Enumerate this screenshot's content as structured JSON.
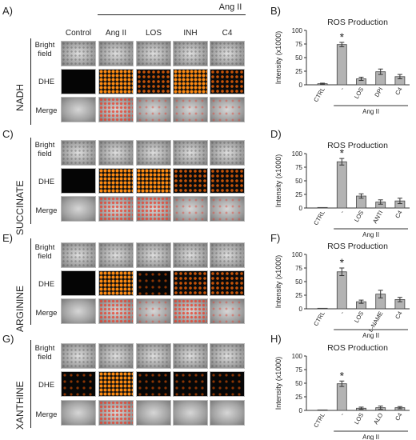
{
  "ang_ii_header": "Ang II",
  "col_headers": [
    "Control",
    "Ang II",
    "LOS",
    "INH",
    "C4"
  ],
  "row_labels": [
    "Bright field",
    "DHE",
    "Merge"
  ],
  "panels": [
    {
      "letter": "A)",
      "substrate": "NADH"
    },
    {
      "letter": "C)",
      "substrate": "SUCCINATE"
    },
    {
      "letter": "E)",
      "substrate": "ARGININE"
    },
    {
      "letter": "G)",
      "substrate": "XANTHINE"
    }
  ],
  "chart_letters": [
    "B)",
    "D)",
    "F)",
    "H)"
  ],
  "chart_data": [
    {
      "type": "bar",
      "title": "ROS Production",
      "ylabel": "Intensity (x1000)",
      "categories": [
        "CTRL",
        "-",
        "LOS",
        "DPI",
        "C4"
      ],
      "values": [
        2,
        74,
        11,
        24,
        15
      ],
      "errors": [
        1,
        4,
        3,
        5,
        4
      ],
      "ylim": [
        0,
        100
      ],
      "yticks": [
        0,
        25,
        50,
        75,
        100
      ],
      "group_label": "Ang II",
      "significance_index": 1,
      "significance_mark": "*"
    },
    {
      "type": "bar",
      "title": "ROS Production",
      "ylabel": "Intensity (x1000)",
      "categories": [
        "CTRL",
        "-",
        "LOS",
        "ANTI",
        "C4"
      ],
      "values": [
        1,
        85,
        22,
        11,
        13
      ],
      "errors": [
        0.5,
        6,
        4,
        4,
        5
      ],
      "ylim": [
        0,
        100
      ],
      "yticks": [
        0,
        25,
        50,
        75,
        100
      ],
      "group_label": "Ang II",
      "significance_index": 1,
      "significance_mark": "*"
    },
    {
      "type": "bar",
      "title": "ROS Production",
      "ylabel": "Intensity (x1000)",
      "categories": [
        "CTRL",
        "-",
        "LOS",
        "L-NAME",
        "C4"
      ],
      "values": [
        1,
        68,
        13,
        27,
        17
      ],
      "errors": [
        0.5,
        7,
        3,
        7,
        4
      ],
      "ylim": [
        0,
        100
      ],
      "yticks": [
        0,
        25,
        50,
        75,
        100
      ],
      "group_label": "Ang II",
      "significance_index": 1,
      "significance_mark": "*"
    },
    {
      "type": "bar",
      "title": "ROS Production",
      "ylabel": "Intensity (x1000)",
      "categories": [
        "CTRL",
        "-",
        "LOS",
        "ALO",
        "C4"
      ],
      "values": [
        1,
        49,
        4,
        5,
        5
      ],
      "errors": [
        0.5,
        5,
        2,
        3,
        2
      ],
      "ylim": [
        0,
        100
      ],
      "yticks": [
        0,
        25,
        50,
        75,
        100
      ],
      "group_label": "Ang II",
      "significance_index": 1,
      "significance_mark": "*"
    }
  ]
}
